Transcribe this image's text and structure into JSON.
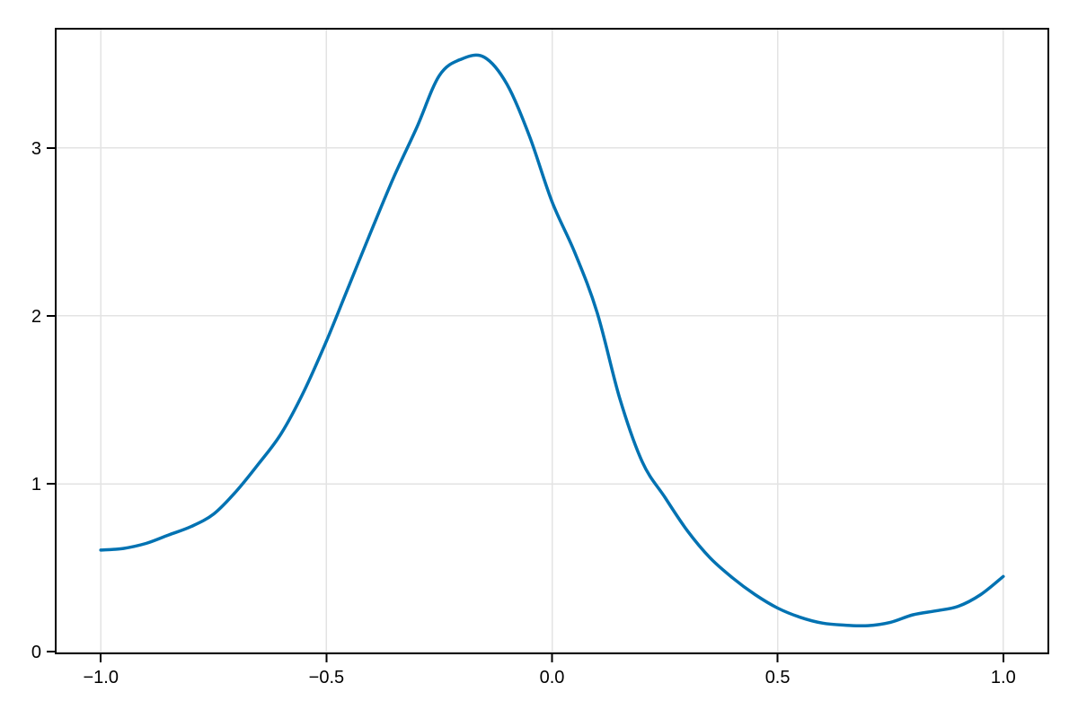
{
  "figure": {
    "background": "#ffffff"
  },
  "chart_data": {
    "type": "line",
    "title": "",
    "xlabel": "",
    "ylabel": "",
    "grid": true,
    "legend": "none",
    "xlim": [
      -1.1,
      1.1
    ],
    "ylim": [
      -0.01,
      3.71
    ],
    "x_tick_values": [
      -1.0,
      -0.5,
      0.0,
      0.5,
      1.0
    ],
    "x_tick_labels": [
      "−1.0",
      "−0.5",
      "0.0",
      "0.5",
      "1.0"
    ],
    "y_tick_values": [
      0,
      1,
      2,
      3
    ],
    "y_tick_labels": [
      "0",
      "1",
      "2",
      "3"
    ],
    "series": [
      {
        "name": "line-series-1",
        "color": "#0072B2",
        "line_width": 3.5,
        "x": [
          -1.0,
          -0.95,
          -0.9,
          -0.85,
          -0.8,
          -0.75,
          -0.7,
          -0.65,
          -0.6,
          -0.55,
          -0.5,
          -0.45,
          -0.4,
          -0.35,
          -0.3,
          -0.25,
          -0.2,
          -0.15,
          -0.1,
          -0.05,
          0.0,
          0.05,
          0.1,
          0.15,
          0.2,
          0.25,
          0.3,
          0.35,
          0.4,
          0.45,
          0.5,
          0.55,
          0.6,
          0.65,
          0.7,
          0.75,
          0.8,
          0.85,
          0.9,
          0.95,
          1.0
        ],
        "y": [
          0.605,
          0.615,
          0.645,
          0.695,
          0.745,
          0.82,
          0.955,
          1.12,
          1.3,
          1.55,
          1.85,
          2.18,
          2.51,
          2.83,
          3.12,
          3.43,
          3.53,
          3.54,
          3.38,
          3.07,
          2.68,
          2.38,
          2.02,
          1.51,
          1.13,
          0.92,
          0.72,
          0.56,
          0.44,
          0.34,
          0.26,
          0.205,
          0.17,
          0.158,
          0.155,
          0.175,
          0.22,
          0.243,
          0.27,
          0.34,
          0.448
        ]
      }
    ]
  },
  "style": {
    "grid_color": "#e3e3e3",
    "spine_color": "#000000",
    "tick_color": "#000000",
    "tick_label_color": "#000000"
  }
}
